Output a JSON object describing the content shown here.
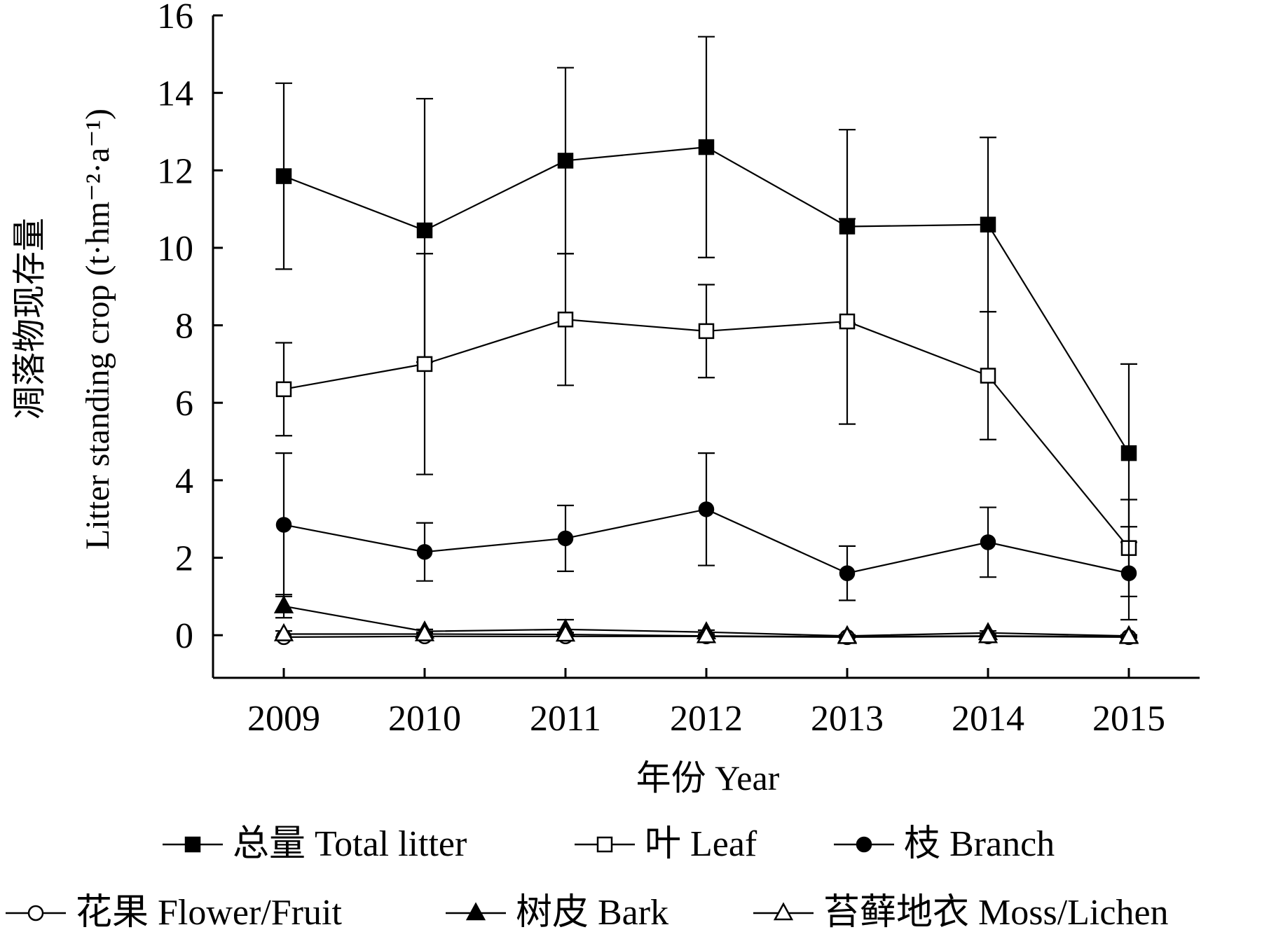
{
  "chart_data": {
    "type": "line",
    "xlabel": "年份 Year",
    "ylabel_cn": "凋落物现存量",
    "ylabel_en": "Litter standing crop (t·hm⁻²·a⁻¹)",
    "ylim": [
      -1.1,
      16
    ],
    "yticks": [
      0,
      2,
      4,
      6,
      8,
      10,
      12,
      14,
      16
    ],
    "x": [
      "2009",
      "2010",
      "2011",
      "2012",
      "2013",
      "2014",
      "2015"
    ],
    "grid": false,
    "legend_position": "bottom",
    "series": [
      {
        "name": "总量 Total litter",
        "marker": "square-filled",
        "values": [
          11.85,
          10.45,
          12.25,
          12.6,
          10.55,
          10.6,
          4.7
        ],
        "err": [
          2.4,
          3.4,
          2.4,
          2.85,
          2.5,
          2.25,
          2.3
        ]
      },
      {
        "name": "叶 Leaf",
        "marker": "square-open",
        "values": [
          6.35,
          7.0,
          8.15,
          7.85,
          8.1,
          6.7,
          2.25
        ],
        "err": [
          1.2,
          2.85,
          1.7,
          1.2,
          2.65,
          1.65,
          1.25
        ]
      },
      {
        "name": "枝 Branch",
        "marker": "circle-filled",
        "values": [
          2.85,
          2.15,
          2.5,
          3.25,
          1.6,
          2.4,
          1.6
        ],
        "err": [
          1.85,
          0.75,
          0.85,
          1.45,
          0.7,
          0.9,
          1.2
        ]
      },
      {
        "name": "花果 Flower/Fruit",
        "marker": "circle-open",
        "values": [
          -0.05,
          -0.03,
          -0.03,
          -0.03,
          -0.05,
          -0.03,
          -0.05
        ],
        "err": [
          0,
          0,
          0,
          0,
          0,
          0,
          0
        ]
      },
      {
        "name": "树皮 Bark",
        "marker": "triangle-filled",
        "values": [
          0.75,
          0.1,
          0.15,
          0.08,
          -0.02,
          0.06,
          -0.02
        ],
        "err": [
          0.3,
          0.05,
          0.25,
          0.05,
          0.03,
          0.05,
          0.03
        ]
      },
      {
        "name": "苔藓地衣 Moss/Lichen",
        "marker": "triangle-open",
        "values": [
          0.03,
          0.03,
          0.02,
          -0.02,
          -0.04,
          -0.02,
          -0.04
        ],
        "err": [
          0.08,
          0.05,
          0.05,
          0.03,
          0.03,
          0.03,
          0.03
        ]
      }
    ]
  }
}
